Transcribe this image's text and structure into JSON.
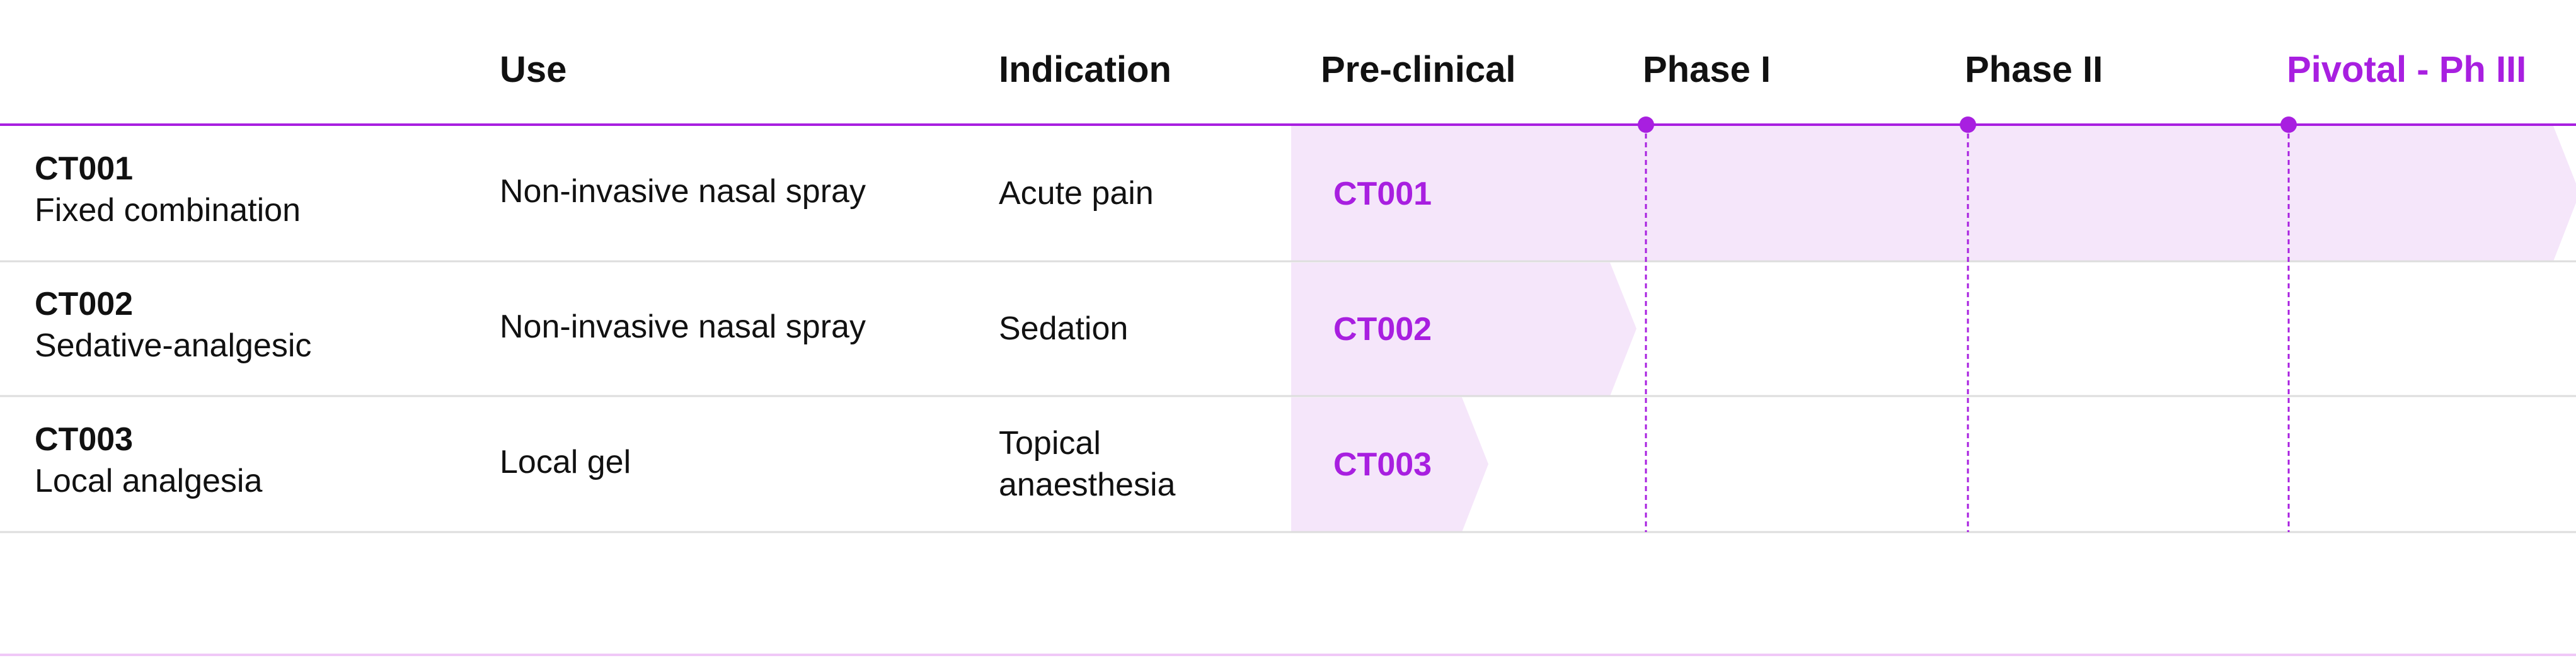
{
  "header": {
    "columns": [
      "Use",
      "Indication",
      "Pre-clinical",
      "Phase I",
      "Phase II",
      "Pivotal - Ph III"
    ]
  },
  "rows": [
    {
      "code": "CT001",
      "description": "Fixed combination",
      "use": "Non-invasive nasal spray",
      "indication": "Acute pain",
      "bar_label": "CT001"
    },
    {
      "code": "CT002",
      "description": "Sedative-analgesic",
      "use": "Non-invasive nasal spray",
      "indication": "Sedation",
      "bar_label": "CT002"
    },
    {
      "code": "CT003",
      "description": "Local analgesia",
      "use": "Local gel",
      "indication": "Topical anaesthesia",
      "bar_label": "CT003"
    }
  ]
}
